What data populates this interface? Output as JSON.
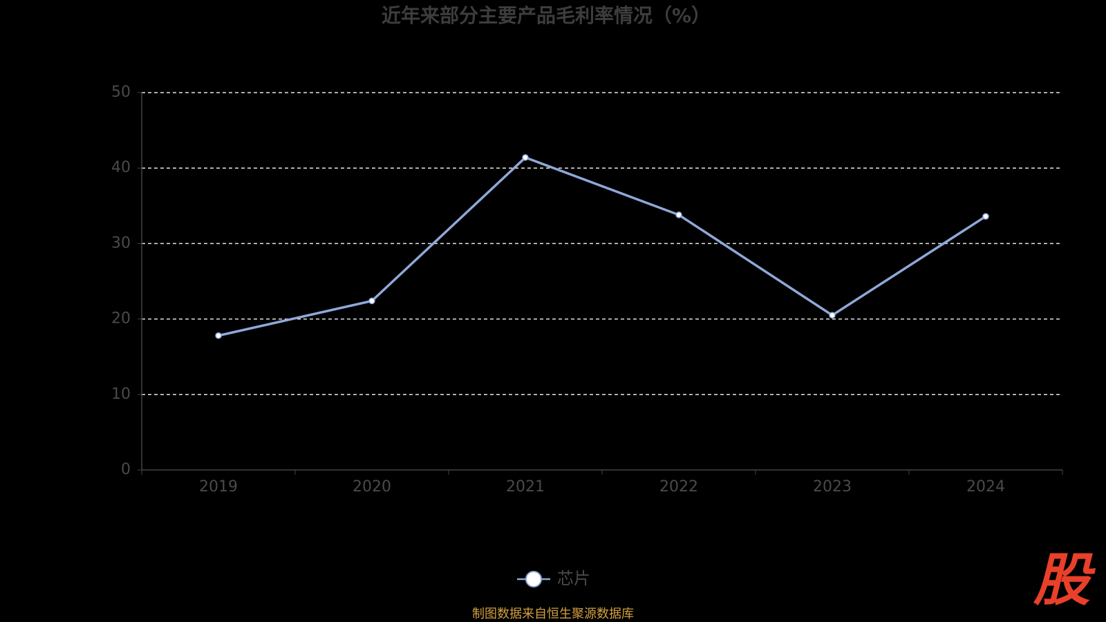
{
  "chart_data": {
    "type": "line",
    "title": "近年来部分主要产品毛利率情况（%）",
    "categories": [
      "2019",
      "2020",
      "2021",
      "2022",
      "2023",
      "2024"
    ],
    "series": [
      {
        "name": "芯片",
        "color": "#8fa8d8",
        "values": [
          17.8,
          22.4,
          41.4,
          33.8,
          20.5,
          33.6
        ]
      }
    ],
    "ylim": [
      0,
      50
    ],
    "yticks": [
      0,
      10,
      20,
      30,
      40,
      50
    ],
    "grid": true
  },
  "source": "制图数据来自恒生聚源数据库",
  "logo": "股"
}
